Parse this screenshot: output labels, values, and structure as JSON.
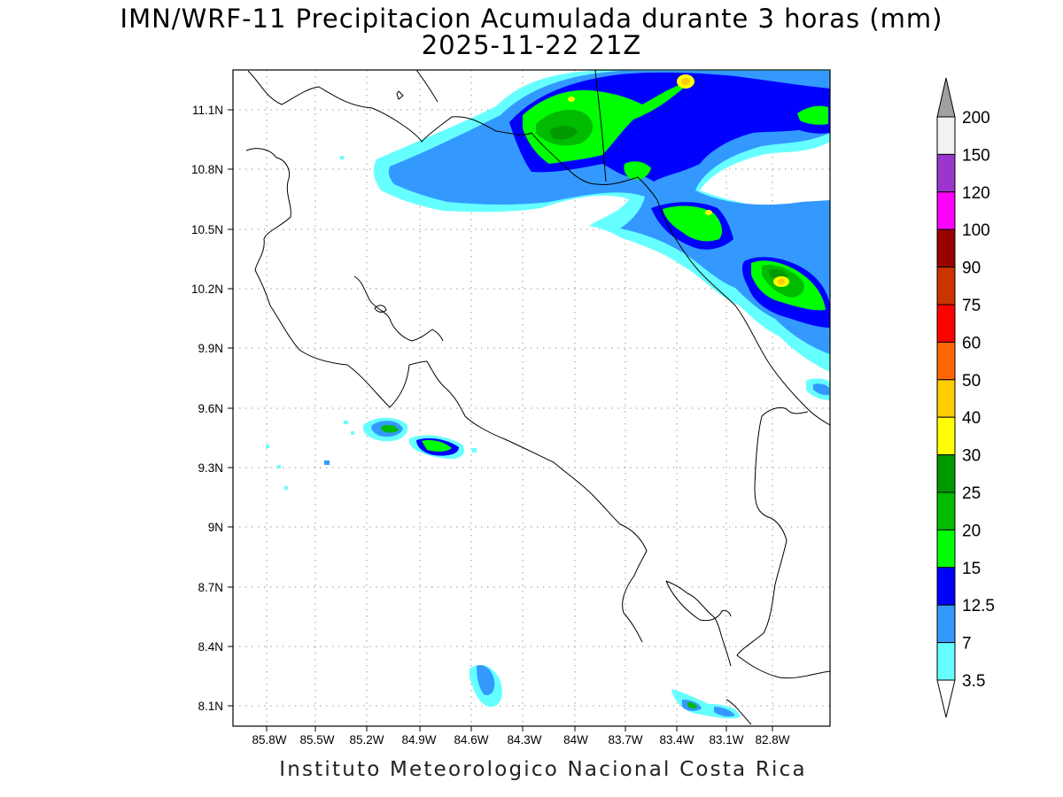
{
  "title_line1": "IMN/WRF-11 Precipitacion Acumulada durante 3 horas (mm)",
  "title_line2": "2025-11-22 21Z",
  "credit": "Instituto Meteorologico Nacional Costa Rica",
  "lon_ticks": [
    "85.8W",
    "85.5W",
    "85.2W",
    "84.9W",
    "84.6W",
    "84.3W",
    "84W",
    "83.7W",
    "83.4W",
    "83.1W",
    "82.8W"
  ],
  "lat_ticks": [
    "11.1N",
    "10.8N",
    "10.5N",
    "10.2N",
    "9.9N",
    "9.6N",
    "9.3N",
    "9N",
    "8.7N",
    "8.4N",
    "8.1N"
  ],
  "colorbar": {
    "labels": [
      "200",
      "150",
      "120",
      "100",
      "90",
      "75",
      "60",
      "50",
      "40",
      "30",
      "25",
      "20",
      "15",
      "12.5",
      "7",
      "3.5"
    ],
    "colors": [
      "#f2f2f2",
      "#9c35cc",
      "#ff00ff",
      "#990000",
      "#cc3300",
      "#ff0000",
      "#ff6600",
      "#ffcc00",
      "#ffff00",
      "#009900",
      "#00bb00",
      "#00ff00",
      "#0000ff",
      "#3399ff",
      "#66ffff"
    ],
    "top_arrow_color": "#a0a0a0",
    "bottom_arrow_color": "#ffffff"
  }
}
